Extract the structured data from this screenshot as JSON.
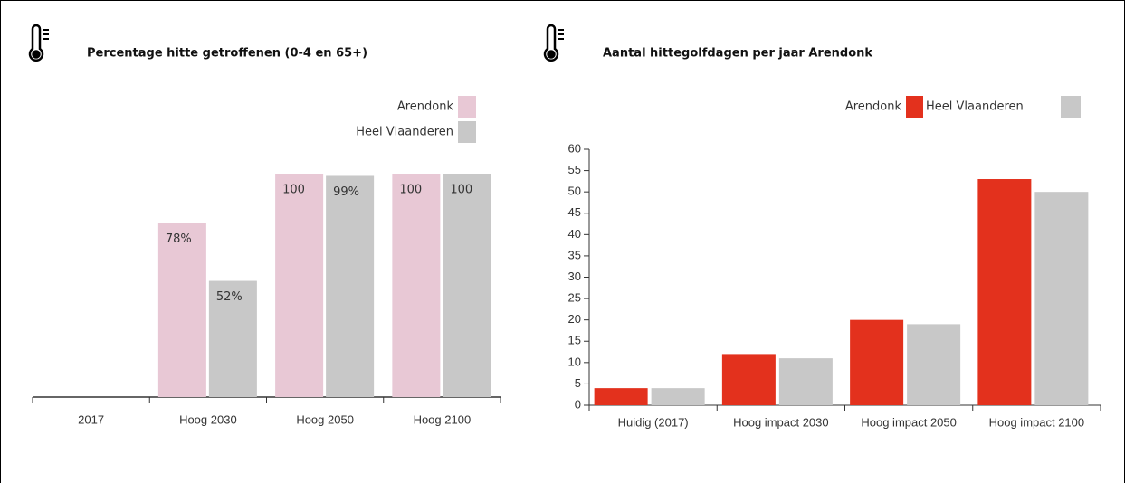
{
  "chart_data": [
    {
      "type": "bar",
      "title": "Percentage hitte getroffenen (0-4 en 65+)",
      "categories": [
        "2017",
        "Hoog 2030",
        "Hoog 2050",
        "Hoog 2100"
      ],
      "series": [
        {
          "name": "Arendonk",
          "color": "#e8c8d5",
          "values": [
            null,
            78,
            100,
            100
          ],
          "value_labels": [
            null,
            "78%",
            "100",
            "100"
          ]
        },
        {
          "name": "Heel Vlaanderen",
          "color": "#c8c8c8",
          "values": [
            null,
            52,
            99,
            100
          ],
          "value_labels": [
            null,
            "52%",
            "99%",
            "100"
          ]
        }
      ]
    },
    {
      "type": "bar",
      "title": "Aantal hittegolfdagen per jaar Arendonk",
      "categories": [
        "Huidig (2017)",
        "Hoog impact 2030",
        "Hoog impact 2050",
        "Hoog impact 2100"
      ],
      "series": [
        {
          "name": "Arendonk",
          "color": "#e3311d",
          "values": [
            4,
            12,
            20,
            53
          ]
        },
        {
          "name": "Heel Vlaanderen",
          "color": "#c8c8c8",
          "values": [
            4,
            11,
            19,
            50
          ]
        }
      ],
      "ylim": [
        0,
        60
      ],
      "yticks": [
        0,
        5,
        10,
        15,
        20,
        25,
        30,
        35,
        40,
        45,
        50,
        55,
        60
      ]
    }
  ]
}
